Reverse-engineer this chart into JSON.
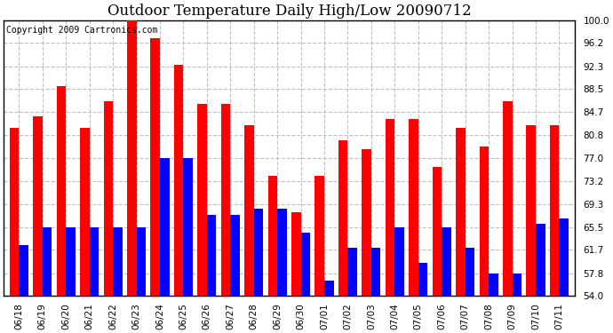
{
  "title": "Outdoor Temperature Daily High/Low 20090712",
  "copyright": "Copyright 2009 Cartronics.com",
  "labels": [
    "06/18",
    "06/19",
    "06/20",
    "06/21",
    "06/22",
    "06/23",
    "06/24",
    "06/25",
    "06/26",
    "06/27",
    "06/28",
    "06/29",
    "06/30",
    "07/01",
    "07/02",
    "07/03",
    "07/04",
    "07/05",
    "07/06",
    "07/07",
    "07/08",
    "07/09",
    "07/10",
    "07/11"
  ],
  "highs": [
    82.0,
    84.0,
    89.0,
    82.0,
    86.5,
    100.0,
    97.0,
    92.5,
    86.0,
    86.0,
    82.5,
    74.0,
    68.0,
    74.0,
    80.0,
    78.5,
    83.5,
    83.5,
    75.5,
    82.0,
    79.0,
    86.5,
    82.5,
    82.5
  ],
  "lows": [
    62.5,
    65.5,
    65.5,
    65.5,
    65.5,
    65.5,
    77.0,
    77.0,
    67.5,
    67.5,
    68.5,
    68.5,
    64.5,
    56.5,
    62.0,
    62.0,
    65.5,
    59.5,
    65.5,
    62.0,
    57.8,
    57.8,
    66.0,
    67.0
  ],
  "high_color": "#ff0000",
  "low_color": "#0000ff",
  "bg_color": "#ffffff",
  "plot_bg_color": "#ffffff",
  "grid_color": "#c0c0c0",
  "ylim_min": 54.0,
  "ylim_max": 100.0,
  "yticks": [
    54.0,
    57.8,
    61.7,
    65.5,
    69.3,
    73.2,
    77.0,
    80.8,
    84.7,
    88.5,
    92.3,
    96.2,
    100.0
  ],
  "title_fontsize": 12,
  "copyright_fontsize": 7,
  "tick_fontsize": 7.5,
  "bar_width": 0.4
}
